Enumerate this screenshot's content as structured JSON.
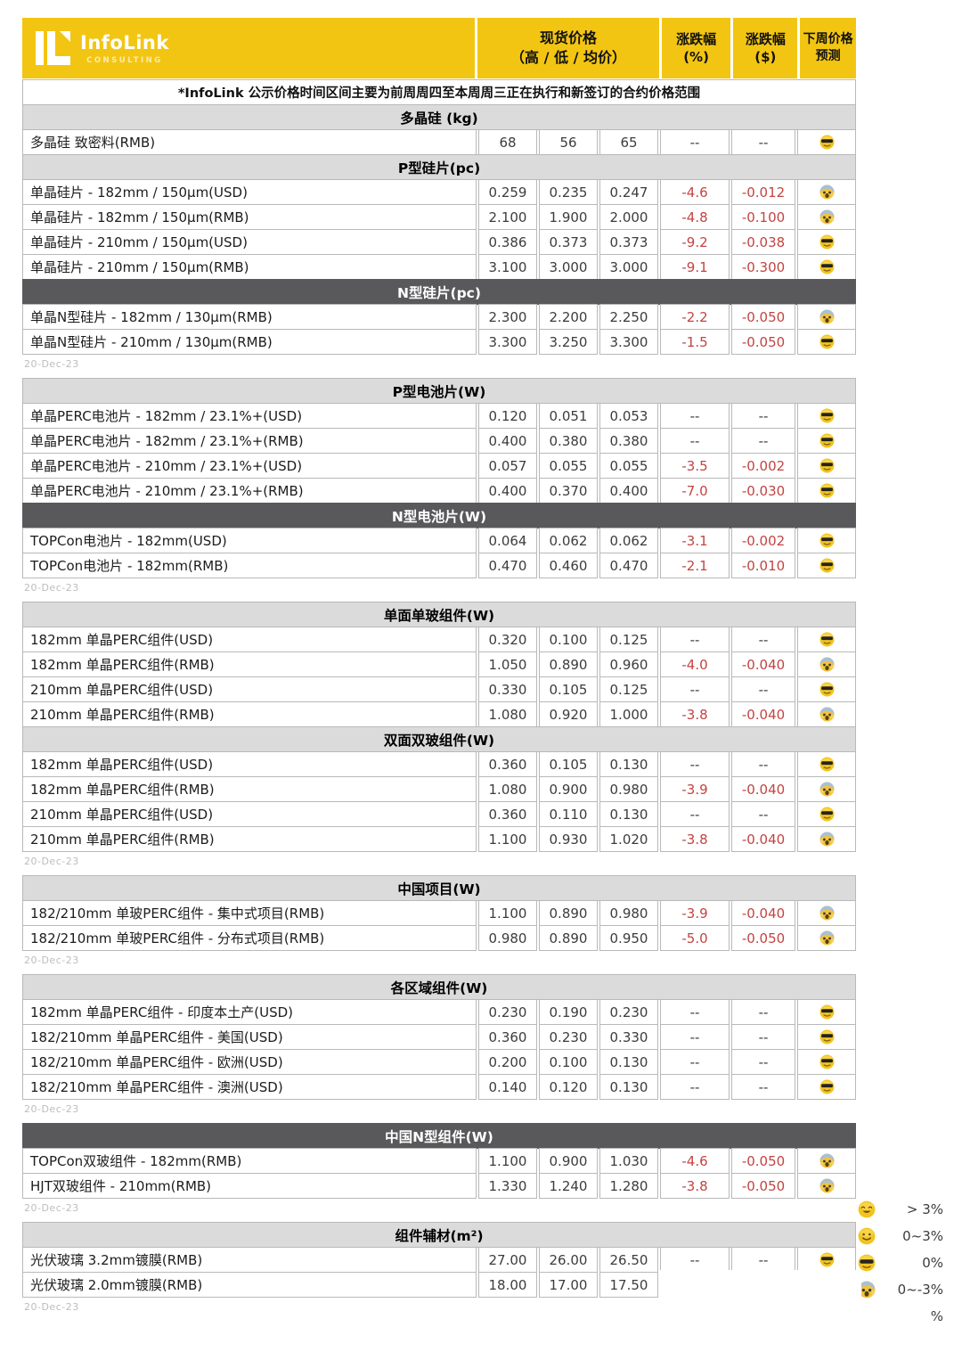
{
  "header": {
    "logo": {
      "brand": "InfoLink",
      "sub": "CONSULTING"
    },
    "columns": {
      "spot_title": "现货价格",
      "spot_sub": "（高 / 低 / 均价）",
      "pct_title": "涨跌幅",
      "pct_sub": "(%)",
      "usd_title": "涨跌幅",
      "usd_sub": "($)",
      "pred_title": "下周价格",
      "pred_sub": "预测"
    },
    "note": "*InfoLink 公示价格时间区间主要为前周周四至本周周三正在执行和新签订的合约价格范围"
  },
  "colors": {
    "brand_yellow": "#F3C513",
    "dark_bar": "#59595B",
    "light_bar": "#DBDBDB",
    "negative_red": "#C24441"
  },
  "blocks": [
    {
      "date": "20-Dec-23",
      "sections": [
        {
          "title": "多晶硅 (kg)",
          "style": "light",
          "rows": [
            {
              "name": "多晶硅 致密料(RMB)",
              "high": "68",
              "low": "56",
              "avg": "65",
              "pct": "--",
              "usd": "--",
              "forecast": "sunglasses-face"
            }
          ]
        },
        {
          "title": "P型硅片(pc)",
          "style": "light",
          "rows": [
            {
              "name": "单晶硅片 - 182mm / 150µm(USD)",
              "high": "0.259",
              "low": "0.235",
              "avg": "0.247",
              "pct": "-4.6",
              "usd": "-0.012",
              "forecast": "scream-face"
            },
            {
              "name": "单晶硅片 - 182mm / 150µm(RMB)",
              "high": "2.100",
              "low": "1.900",
              "avg": "2.000",
              "pct": "-4.8",
              "usd": "-0.100",
              "forecast": "scream-face"
            },
            {
              "name": "单晶硅片 - 210mm / 150µm(USD)",
              "high": "0.386",
              "low": "0.373",
              "avg": "0.373",
              "pct": "-9.2",
              "usd": "-0.038",
              "forecast": "sunglasses-face"
            },
            {
              "name": "单晶硅片 - 210mm / 150µm(RMB)",
              "high": "3.100",
              "low": "3.000",
              "avg": "3.000",
              "pct": "-9.1",
              "usd": "-0.300",
              "forecast": "sunglasses-face"
            }
          ]
        },
        {
          "title": "N型硅片(pc)",
          "style": "dark",
          "rows": [
            {
              "name": "单晶N型硅片 - 182mm / 130µm(RMB)",
              "high": "2.300",
              "low": "2.200",
              "avg": "2.250",
              "pct": "-2.2",
              "usd": "-0.050",
              "forecast": "scream-face"
            },
            {
              "name": "单晶N型硅片 - 210mm / 130µm(RMB)",
              "high": "3.300",
              "low": "3.250",
              "avg": "3.300",
              "pct": "-1.5",
              "usd": "-0.050",
              "forecast": "sunglasses-face"
            }
          ]
        }
      ]
    },
    {
      "date": "20-Dec-23",
      "sections": [
        {
          "title": "P型电池片(W)",
          "style": "light",
          "rows": [
            {
              "name": "单晶PERC电池片 - 182mm / 23.1%+(USD)",
              "high": "0.120",
              "low": "0.051",
              "avg": "0.053",
              "pct": "--",
              "usd": "--",
              "forecast": "sunglasses-face"
            },
            {
              "name": "单晶PERC电池片 - 182mm / 23.1%+(RMB)",
              "high": "0.400",
              "low": "0.380",
              "avg": "0.380",
              "pct": "--",
              "usd": "--",
              "forecast": "sunglasses-face"
            },
            {
              "name": "单晶PERC电池片 - 210mm / 23.1%+(USD)",
              "high": "0.057",
              "low": "0.055",
              "avg": "0.055",
              "pct": "-3.5",
              "usd": "-0.002",
              "forecast": "sunglasses-face"
            },
            {
              "name": "单晶PERC电池片 - 210mm / 23.1%+(RMB)",
              "high": "0.400",
              "low": "0.370",
              "avg": "0.400",
              "pct": "-7.0",
              "usd": "-0.030",
              "forecast": "sunglasses-face"
            }
          ]
        },
        {
          "title": "N型电池片(W)",
          "style": "dark",
          "rows": [
            {
              "name": "TOPCon电池片 - 182mm(USD)",
              "high": "0.064",
              "low": "0.062",
              "avg": "0.062",
              "pct": "-3.1",
              "usd": "-0.002",
              "forecast": "sunglasses-face"
            },
            {
              "name": "TOPCon电池片 - 182mm(RMB)",
              "high": "0.470",
              "low": "0.460",
              "avg": "0.470",
              "pct": "-2.1",
              "usd": "-0.010",
              "forecast": "sunglasses-face"
            }
          ]
        }
      ]
    },
    {
      "date": "20-Dec-23",
      "sections": [
        {
          "title": "单面单玻组件(W)",
          "style": "light",
          "rows": [
            {
              "name": "182mm 单晶PERC组件(USD)",
              "high": "0.320",
              "low": "0.100",
              "avg": "0.125",
              "pct": "--",
              "usd": "--",
              "forecast": "sunglasses-face"
            },
            {
              "name": "182mm 单晶PERC组件(RMB)",
              "high": "1.050",
              "low": "0.890",
              "avg": "0.960",
              "pct": "-4.0",
              "usd": "-0.040",
              "forecast": "scream-face"
            },
            {
              "name": "210mm 单晶PERC组件(USD)",
              "high": "0.330",
              "low": "0.105",
              "avg": "0.125",
              "pct": "--",
              "usd": "--",
              "forecast": "sunglasses-face"
            },
            {
              "name": "210mm 单晶PERC组件(RMB)",
              "high": "1.080",
              "low": "0.920",
              "avg": "1.000",
              "pct": "-3.8",
              "usd": "-0.040",
              "forecast": "scream-face"
            }
          ]
        },
        {
          "title": "双面双玻组件(W)",
          "style": "light",
          "rows": [
            {
              "name": "182mm 单晶PERC组件(USD)",
              "high": "0.360",
              "low": "0.105",
              "avg": "0.130",
              "pct": "--",
              "usd": "--",
              "forecast": "sunglasses-face"
            },
            {
              "name": "182mm 单晶PERC组件(RMB)",
              "high": "1.080",
              "low": "0.900",
              "avg": "0.980",
              "pct": "-3.9",
              "usd": "-0.040",
              "forecast": "scream-face"
            },
            {
              "name": "210mm 单晶PERC组件(USD)",
              "high": "0.360",
              "low": "0.110",
              "avg": "0.130",
              "pct": "--",
              "usd": "--",
              "forecast": "sunglasses-face"
            },
            {
              "name": "210mm 单晶PERC组件(RMB)",
              "high": "1.100",
              "low": "0.930",
              "avg": "1.020",
              "pct": "-3.8",
              "usd": "-0.040",
              "forecast": "scream-face"
            }
          ]
        }
      ]
    },
    {
      "date": "20-Dec-23",
      "sections": [
        {
          "title": "中国项目(W)",
          "style": "light",
          "rows": [
            {
              "name": "182/210mm 单玻PERC组件 - 集中式项目(RMB)",
              "high": "1.100",
              "low": "0.890",
              "avg": "0.980",
              "pct": "-3.9",
              "usd": "-0.040",
              "forecast": "scream-face"
            },
            {
              "name": "182/210mm 单玻PERC组件 - 分布式项目(RMB)",
              "high": "0.980",
              "low": "0.890",
              "avg": "0.950",
              "pct": "-5.0",
              "usd": "-0.050",
              "forecast": "scream-face"
            }
          ]
        }
      ]
    },
    {
      "date": "20-Dec-23",
      "sections": [
        {
          "title": "各区域组件(W)",
          "style": "light",
          "rows": [
            {
              "name": "182mm 单晶PERC组件 - 印度本土产(USD)",
              "high": "0.230",
              "low": "0.190",
              "avg": "0.230",
              "pct": "--",
              "usd": "--",
              "forecast": "sunglasses-face"
            },
            {
              "name": "182/210mm 单晶PERC组件 - 美国(USD)",
              "high": "0.360",
              "low": "0.230",
              "avg": "0.330",
              "pct": "--",
              "usd": "--",
              "forecast": "sunglasses-face"
            },
            {
              "name": "182/210mm 单晶PERC组件 - 欧洲(USD)",
              "high": "0.200",
              "low": "0.100",
              "avg": "0.130",
              "pct": "--",
              "usd": "--",
              "forecast": "sunglasses-face"
            },
            {
              "name": "182/210mm 单晶PERC组件 - 澳洲(USD)",
              "high": "0.140",
              "low": "0.120",
              "avg": "0.130",
              "pct": "--",
              "usd": "--",
              "forecast": "sunglasses-face"
            }
          ]
        }
      ]
    },
    {
      "date": "20-Dec-23",
      "sections": [
        {
          "title": "中国N型组件(W)",
          "style": "dark",
          "rows": [
            {
              "name": "TOPCon双玻组件 - 182mm(RMB)",
              "high": "1.100",
              "low": "0.900",
              "avg": "1.030",
              "pct": "-4.6",
              "usd": "-0.050",
              "forecast": "scream-face"
            },
            {
              "name": "HJT双玻组件 - 210mm(RMB)",
              "high": "1.330",
              "low": "1.240",
              "avg": "1.280",
              "pct": "-3.8",
              "usd": "-0.050",
              "forecast": "scream-face"
            }
          ]
        }
      ]
    },
    {
      "date": "20-Dec-23",
      "sections": [
        {
          "title": "组件辅材(m²)",
          "style": "light",
          "rows": [
            {
              "name": "光伏玻璃 3.2mm镀膜(RMB)",
              "high": "27.00",
              "low": "26.00",
              "avg": "26.50",
              "pct": "--",
              "usd": "--",
              "forecast": "sunglasses-face"
            },
            {
              "name": "光伏玻璃 2.0mm镀膜(RMB)",
              "high": "18.00",
              "low": "17.00",
              "avg": "17.50",
              "pct": "",
              "usd": "",
              "forecast": "none",
              "covered": true
            }
          ]
        }
      ]
    }
  ],
  "legend": {
    "items": [
      {
        "icon": "grin-face",
        "label": "> 3%"
      },
      {
        "icon": "smile-face",
        "label": "0~3%"
      },
      {
        "icon": "sunglasses-face",
        "label": "0%"
      },
      {
        "icon": "scream-face",
        "label": "0~-3%"
      },
      {
        "icon": null,
        "label": "%"
      }
    ]
  }
}
